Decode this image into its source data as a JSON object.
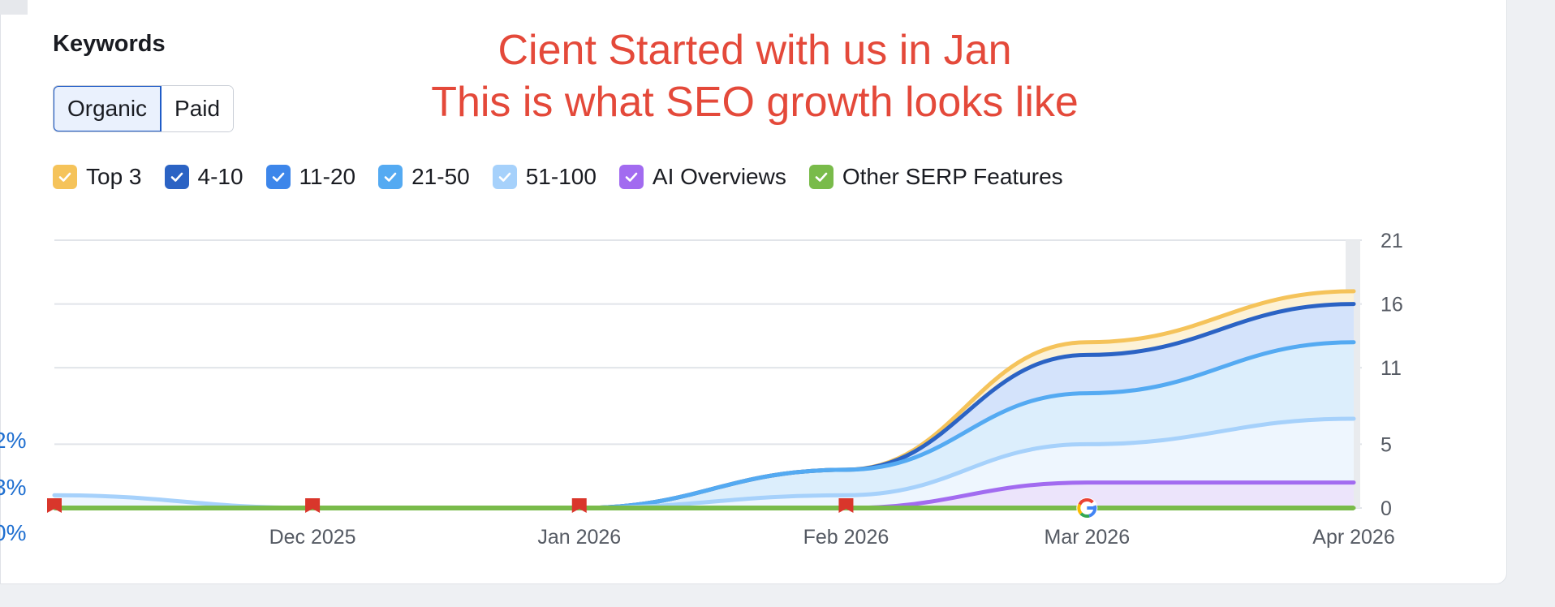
{
  "header": {
    "title": "Keywords",
    "tabs": [
      {
        "label": "Organic",
        "active": true
      },
      {
        "label": "Paid",
        "active": false
      }
    ]
  },
  "annotation": {
    "line1": "Cient Started with us in Jan",
    "line2": "This is what SEO growth looks like",
    "color": "#e4493a"
  },
  "legend": [
    {
      "label": "Top 3",
      "color": "#f5c35a",
      "icon": "check-icon"
    },
    {
      "label": "4-10",
      "color": "#2b63c4",
      "icon": "check-icon"
    },
    {
      "label": "11-20",
      "color": "#3d86ea",
      "icon": "check-icon"
    },
    {
      "label": "21-50",
      "color": "#54aaf2",
      "icon": "check-icon"
    },
    {
      "label": "51-100",
      "color": "#a6d1fb",
      "icon": "check-icon"
    },
    {
      "label": "AI Overviews",
      "color": "#a26bf0",
      "icon": "check-icon"
    },
    {
      "label": "Other SERP Features",
      "color": "#79bb4a",
      "icon": "check-icon"
    }
  ],
  "left_axis_partial": [
    "2%",
    "3%",
    "0%"
  ],
  "chart_data": {
    "type": "area",
    "x": [
      "2025-11-01",
      "2025-12-01",
      "2026-01-01",
      "2026-02-01",
      "2026-03-01",
      "2026-04-01"
    ],
    "x_tick_labels": [
      "Dec 2025",
      "Jan 2026",
      "Feb 2026",
      "Mar 2026",
      "Apr 2026"
    ],
    "y_ticks": [
      0,
      5,
      11,
      16,
      21
    ],
    "ylim": [
      0,
      21
    ],
    "stacked": true,
    "series": [
      {
        "name": "Top 3",
        "color": "#f5c35a",
        "cumulative": [
          0,
          0,
          0,
          3,
          13,
          17
        ]
      },
      {
        "name": "4-10",
        "color": "#2b63c4",
        "cumulative": [
          0,
          0,
          0,
          3,
          12,
          16
        ]
      },
      {
        "name": "11-20",
        "color": "#54aaf2",
        "cumulative": [
          0,
          0,
          0,
          3,
          9,
          13
        ]
      },
      {
        "name": "51-100",
        "color": "#a6d1fb",
        "cumulative": [
          1,
          0,
          0,
          1,
          5,
          7
        ]
      },
      {
        "name": "AI Overviews",
        "color": "#a26bf0",
        "cumulative": [
          0,
          0,
          0,
          0,
          2,
          2
        ]
      },
      {
        "name": "Other SERP Features",
        "color": "#79bb4a",
        "cumulative": [
          0,
          0,
          0,
          0,
          0,
          0
        ]
      }
    ],
    "markers": [
      {
        "x": "2025-11-01",
        "type": "flag",
        "color": "#d9362b"
      },
      {
        "x": "2025-12-01",
        "type": "flag",
        "color": "#d9362b"
      },
      {
        "x": "2026-01-01",
        "type": "flag",
        "color": "#d9362b"
      },
      {
        "x": "2026-02-01",
        "type": "flag",
        "color": "#d9362b"
      },
      {
        "x": "2026-03-01",
        "type": "google",
        "color": "#4285f4"
      }
    ],
    "grid": true
  }
}
